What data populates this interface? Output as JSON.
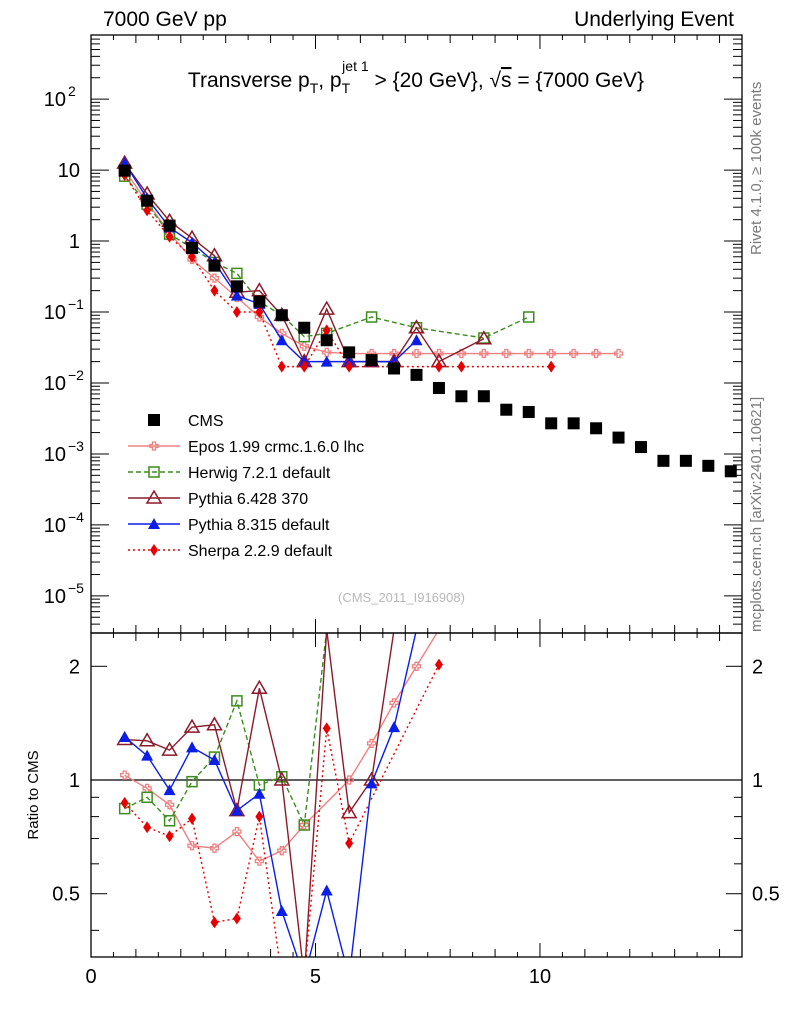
{
  "header": {
    "left": "7000 GeV pp",
    "right": "Underlying Event"
  },
  "side_labels": {
    "rivet": "Rivet 4.1.0, ≥ 100k events",
    "url": "mcplots.cern.ch [arXiv:2401.10621]"
  },
  "watermark": "(CMS_2011_I916908)",
  "chart_data": [
    {
      "panel": "main",
      "type": "scatter",
      "title": "Transverse p_T, p_T^{jet 1} > {20 GeV}, √s = {7000 GeV}",
      "title_parts": {
        "a": "Transverse p",
        "a_sub": "T",
        "b": ", p",
        "b_sub": "T",
        "b_sup": "jet 1",
        "c": " > {20 GeV}, ",
        "sqrt": "√",
        "s": "s",
        "d": " = {7000 GeV}"
      },
      "xlabel": "",
      "ylabel": "",
      "xlim": [
        0,
        14.5
      ],
      "ylim": [
        3e-06,
        800
      ],
      "yscale": "log",
      "y_ticks": [
        {
          "v": 1e-05,
          "base": "10",
          "exp": "−5"
        },
        {
          "v": 0.0001,
          "base": "10",
          "exp": "−4"
        },
        {
          "v": 0.001,
          "base": "10",
          "exp": "−3"
        },
        {
          "v": 0.01,
          "base": "10",
          "exp": "−2"
        },
        {
          "v": 0.1,
          "base": "10",
          "exp": "−1"
        },
        {
          "v": 1,
          "base": "1",
          "exp": ""
        },
        {
          "v": 10,
          "base": "10",
          "exp": ""
        },
        {
          "v": 100,
          "base": "10",
          "exp": "2"
        }
      ],
      "legend_position": "lower-left",
      "series": [
        {
          "name": "CMS",
          "color": "#000000",
          "marker": "square",
          "dash": "none",
          "line": false,
          "x": [
            0.75,
            1.25,
            1.75,
            2.25,
            2.75,
            3.25,
            3.75,
            4.25,
            4.75,
            5.25,
            5.75,
            6.25,
            6.75,
            7.25,
            7.75,
            8.25,
            8.75,
            9.25,
            9.75,
            10.25,
            10.75,
            11.25,
            11.75,
            12.25,
            12.75,
            13.25,
            13.75,
            14.25
          ],
          "values": [
            9.8,
            3.7,
            1.65,
            0.8,
            0.45,
            0.23,
            0.14,
            0.09,
            0.06,
            0.04,
            0.027,
            0.021,
            0.016,
            0.013,
            0.0085,
            0.0065,
            0.0065,
            0.0042,
            0.0039,
            0.0027,
            0.0027,
            0.0023,
            0.0017,
            0.00125,
            0.0008,
            0.0008,
            0.00068,
            0.00057
          ]
        },
        {
          "name": "Epos 1.99 crmc.1.6.0 lhc",
          "color": "#f08080",
          "marker": "cross",
          "dash": "none",
          "line": true,
          "x": [
            0.75,
            1.25,
            1.75,
            2.25,
            2.75,
            3.25,
            3.75,
            4.25,
            4.75,
            5.25,
            5.75,
            6.25,
            6.75,
            7.25,
            7.75,
            8.25,
            8.75,
            9.25,
            9.75,
            10.25,
            10.75,
            11.25,
            11.75
          ],
          "values": [
            10,
            3.5,
            1.3,
            0.55,
            0.3,
            0.16,
            0.085,
            0.05,
            0.033,
            0.027,
            0.026,
            0.026,
            0.026,
            0.026,
            0.026,
            0.026,
            0.026,
            0.026,
            0.026,
            0.026,
            0.026,
            0.026,
            0.026
          ]
        },
        {
          "name": "Herwig 7.2.1 default",
          "color": "#3c8c1e",
          "marker": "open-square",
          "dash": "5,3",
          "line": true,
          "x": [
            0.75,
            1.25,
            1.75,
            2.25,
            2.75,
            3.25,
            3.75,
            4.25,
            4.75,
            5.25,
            6.25,
            7.25,
            8.75,
            9.75
          ],
          "values": [
            8.2,
            3.3,
            1.25,
            0.8,
            0.5,
            0.35,
            0.14,
            0.09,
            0.045,
            0.05,
            0.085,
            0.06,
            0.043,
            0.085
          ]
        },
        {
          "name": "Pythia 6.428 370",
          "color": "#8b1a2a",
          "marker": "open-triangle",
          "dash": "none",
          "line": true,
          "x": [
            0.75,
            1.25,
            1.75,
            2.25,
            2.75,
            3.25,
            3.75,
            4.25,
            4.75,
            5.25,
            5.75,
            6.25,
            6.75,
            7.25,
            7.75,
            8.75
          ],
          "values": [
            12.5,
            4.6,
            1.9,
            1.1,
            0.62,
            0.19,
            0.2,
            0.09,
            0.02,
            0.11,
            0.02,
            0.02,
            0.02,
            0.06,
            0.02,
            0.042
          ]
        },
        {
          "name": "Pythia 8.315 default",
          "color": "#0a1ee6",
          "marker": "filled-triangle",
          "dash": "none",
          "line": true,
          "x": [
            0.75,
            1.25,
            1.75,
            2.25,
            2.75,
            3.25,
            3.75,
            4.25,
            4.75,
            5.25,
            5.75,
            6.25,
            6.75,
            7.25
          ],
          "values": [
            12.5,
            4,
            1.55,
            0.95,
            0.5,
            0.17,
            0.13,
            0.04,
            0.02,
            0.02,
            0.02,
            0.02,
            0.02,
            0.04
          ]
        },
        {
          "name": "Sherpa 2.2.9 default",
          "color": "#e60000",
          "marker": "diamond",
          "dash": "2,3",
          "line": true,
          "x": [
            0.75,
            1.25,
            1.75,
            2.25,
            2.75,
            3.25,
            3.75,
            4.25,
            4.75,
            5.25,
            5.75,
            6.75,
            7.75,
            8.25,
            10.25
          ],
          "values": [
            8.5,
            2.7,
            1.15,
            0.6,
            0.2,
            0.1,
            0.1,
            0.017,
            0.017,
            0.055,
            0.017,
            0.017,
            0.017,
            0.017,
            0.017
          ]
        }
      ]
    },
    {
      "panel": "ratio",
      "type": "line",
      "title": "",
      "xlabel": "",
      "ylabel": "Ratio to CMS",
      "xlim": [
        0,
        14.5
      ],
      "ylim": [
        0.34,
        2.45
      ],
      "yscale": "log",
      "y_ticks": [
        0.5,
        1,
        2
      ],
      "x_ticks": [
        0,
        5,
        10
      ],
      "reference_line": 1,
      "series": [
        {
          "name": "Epos 1.99 crmc.1.6.0 lhc",
          "x": [
            0.75,
            1.25,
            1.75,
            2.25,
            2.75,
            3.25,
            3.75,
            4.25,
            4.75,
            5.75,
            6.25,
            6.75,
            7.25,
            7.75
          ],
          "values": [
            1.03,
            0.95,
            0.86,
            0.67,
            0.66,
            0.73,
            0.61,
            0.65,
            0.76,
            1.0,
            1.25,
            1.6,
            2.0,
            2.5
          ]
        },
        {
          "name": "Herwig 7.2.1 default",
          "x": [
            0.75,
            1.25,
            1.75,
            2.25,
            2.75,
            3.25,
            3.75,
            4.25,
            4.75,
            5.25
          ],
          "values": [
            0.84,
            0.9,
            0.78,
            0.99,
            1.15,
            1.62,
            0.97,
            1.02,
            0.76,
            2.5
          ]
        },
        {
          "name": "Pythia 6.428 370",
          "x": [
            0.75,
            1.25,
            1.75,
            2.25,
            2.75,
            3.25,
            3.75,
            4.25,
            4.75,
            5.25,
            5.75,
            6.25,
            6.75
          ],
          "values": [
            1.28,
            1.27,
            1.2,
            1.38,
            1.4,
            0.83,
            1.75,
            1.0,
            0.3,
            2.5,
            0.82,
            1.0,
            2.5
          ]
        },
        {
          "name": "Pythia 8.315 default",
          "x": [
            0.75,
            1.25,
            1.75,
            2.25,
            2.75,
            3.25,
            3.75,
            4.25,
            4.75,
            5.25,
            5.75,
            6.25,
            6.75,
            7.25
          ],
          "values": [
            1.3,
            1.16,
            0.94,
            1.22,
            1.13,
            0.83,
            0.92,
            0.45,
            0.3,
            0.51,
            0.3,
            0.98,
            1.38,
            2.5
          ]
        },
        {
          "name": "Sherpa 2.2.9 default",
          "x": [
            0.75,
            1.25,
            1.75,
            2.25,
            2.75,
            3.25,
            3.75,
            4.25,
            4.75,
            5.25,
            5.75,
            7.75
          ],
          "values": [
            0.87,
            0.75,
            0.71,
            0.79,
            0.42,
            0.43,
            0.8,
            0.3,
            0.3,
            1.37,
            0.68,
            2.02
          ]
        }
      ]
    }
  ]
}
